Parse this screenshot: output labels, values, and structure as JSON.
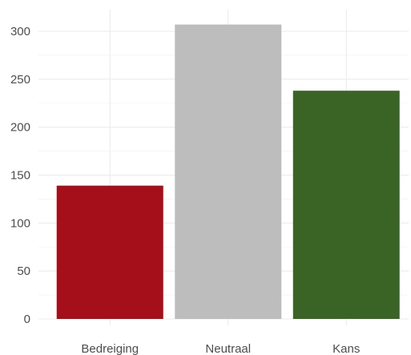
{
  "chart_data": {
    "type": "bar",
    "title": "",
    "xlabel": "",
    "ylabel": "",
    "categories": [
      "Bedreiging",
      "Neutraal",
      "Kans"
    ],
    "values": [
      139,
      307,
      238
    ],
    "colors": [
      "#a50f1a",
      "#bdbdbd",
      "#3a6426"
    ],
    "ylim": [
      0,
      320
    ],
    "yticks": [
      0,
      50,
      100,
      150,
      200,
      250,
      300
    ],
    "grid": true,
    "legend": "none"
  }
}
